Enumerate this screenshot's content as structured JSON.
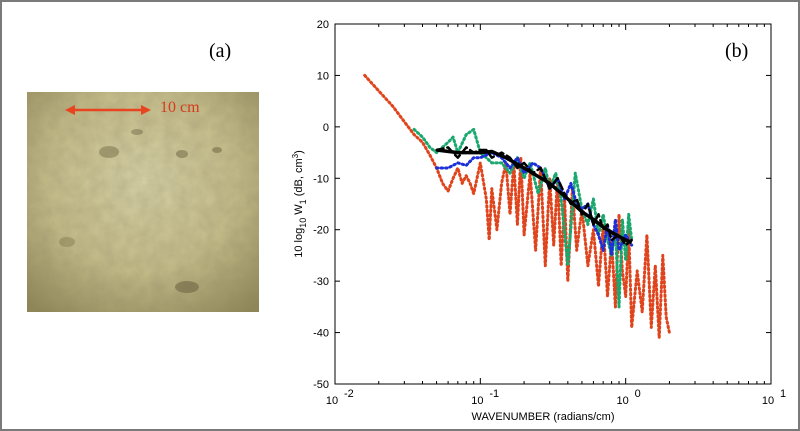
{
  "panels": {
    "a_label": "(a)",
    "b_label": "(b)"
  },
  "photo": {
    "scale_label": "10 cm",
    "scale_color": "#e8441f"
  },
  "chart_data": {
    "type": "line",
    "xscale": "log",
    "xlim": [
      0.01,
      10
    ],
    "ylim": [
      -50,
      20
    ],
    "x_ticks": [
      {
        "value": 0.01,
        "base": "10",
        "exp": "-2"
      },
      {
        "value": 0.1,
        "base": "10",
        "exp": "-1"
      },
      {
        "value": 1,
        "base": "10",
        "exp": "0"
      },
      {
        "value": 10,
        "base": "10",
        "exp": "1"
      }
    ],
    "y_ticks": [
      20,
      10,
      0,
      -10,
      -20,
      -30,
      -40,
      -50
    ],
    "xlabel": "WAVENUMBER (radians/cm)",
    "ylabel_parts": {
      "pre": "10 log",
      "sub10": "10",
      "w": " W",
      "sub1": "1",
      "post": "  (dB, cm",
      "sup": "3",
      "close": ")"
    },
    "grid": false,
    "series": [
      {
        "color": "#e0441c",
        "style": "dotted",
        "x": [
          0.016,
          0.02,
          0.025,
          0.03,
          0.035,
          0.04,
          0.045,
          0.05,
          0.055,
          0.06,
          0.065,
          0.07,
          0.075,
          0.08,
          0.085,
          0.09,
          0.1,
          0.11,
          0.115,
          0.12,
          0.13,
          0.14,
          0.15,
          0.16,
          0.17,
          0.18,
          0.19,
          0.2,
          0.22,
          0.24,
          0.26,
          0.28,
          0.3,
          0.32,
          0.34,
          0.36,
          0.38,
          0.4,
          0.43,
          0.46,
          0.5,
          0.55,
          0.6,
          0.65,
          0.7,
          0.75,
          0.8,
          0.85,
          0.9,
          0.95,
          1.0,
          1.05,
          1.1,
          1.2,
          1.3,
          1.4,
          1.5,
          1.6,
          1.7,
          1.8,
          1.9,
          2.0
        ],
        "y": [
          10,
          7,
          4,
          1,
          -1.5,
          -3,
          -5.5,
          -8,
          -11,
          -12.5,
          -10,
          -8,
          -11,
          -9.5,
          -11,
          -13,
          -7,
          -14,
          -22,
          -12,
          -20,
          -11,
          -7,
          -17,
          -7,
          -19,
          -6,
          -21,
          -9,
          -24,
          -8,
          -27,
          -10,
          -23,
          -10,
          -27,
          -14,
          -30,
          -12,
          -24,
          -16,
          -27,
          -20,
          -31,
          -19,
          -33,
          -22,
          -35,
          -17,
          -28,
          -33,
          -20,
          -39,
          -28,
          -36,
          -21,
          -39,
          -27,
          -41,
          -25,
          -37,
          -40
        ]
      },
      {
        "color": "#1aa86e",
        "style": "dotted",
        "x": [
          0.035,
          0.04,
          0.045,
          0.05,
          0.06,
          0.065,
          0.07,
          0.08,
          0.09,
          0.1,
          0.11,
          0.12,
          0.14,
          0.16,
          0.18,
          0.2,
          0.22,
          0.25,
          0.28,
          0.3,
          0.33,
          0.36,
          0.4,
          0.45,
          0.5,
          0.55,
          0.6,
          0.65,
          0.7,
          0.75,
          0.8,
          0.85,
          0.9,
          0.95,
          1.0,
          1.05,
          1.1
        ],
        "y": [
          -0.5,
          -2,
          -4,
          -5,
          -3,
          -2,
          -5,
          -1.5,
          -0.5,
          -5,
          -6,
          -7,
          -7,
          -9,
          -6,
          -10,
          -7,
          -13,
          -8,
          -12,
          -9,
          -14,
          -27,
          -9,
          -16,
          -19,
          -14,
          -21,
          -17,
          -22,
          -25,
          -20,
          -35,
          -18,
          -26,
          -17,
          -22
        ]
      },
      {
        "color": "#1c2fd8",
        "style": "dotted",
        "x": [
          0.05,
          0.06,
          0.07,
          0.08,
          0.09,
          0.1,
          0.12,
          0.14,
          0.16,
          0.18,
          0.2,
          0.23,
          0.26,
          0.3,
          0.34,
          0.38,
          0.42,
          0.46,
          0.5,
          0.55,
          0.6,
          0.65,
          0.7,
          0.75,
          0.8,
          0.85,
          0.9,
          1.0,
          1.1
        ],
        "y": [
          -8,
          -8,
          -7,
          -7.5,
          -6,
          -6,
          -5,
          -6,
          -8,
          -6,
          -9,
          -7,
          -8,
          -12,
          -10,
          -14,
          -11,
          -15,
          -16,
          -15,
          -19,
          -21,
          -24,
          -19,
          -25,
          -18,
          -24,
          -21,
          -23
        ]
      },
      {
        "color": "#000000",
        "style": "dashed",
        "x": [
          0.05,
          0.06,
          0.07,
          0.08,
          0.09,
          0.1,
          0.11,
          0.12,
          0.14,
          0.16,
          0.18,
          0.2,
          0.23,
          0.26,
          0.3,
          0.34,
          0.38,
          0.42,
          0.46,
          0.5,
          0.55,
          0.6,
          0.65,
          0.7,
          0.75,
          0.8,
          0.9,
          1.0,
          1.1
        ],
        "y": [
          -4.5,
          -4,
          -6,
          -4,
          -5,
          -4.5,
          -4.5,
          -6,
          -5,
          -6,
          -8,
          -7,
          -9,
          -8,
          -12,
          -10,
          -13,
          -15,
          -14,
          -17,
          -15,
          -19,
          -17,
          -20,
          -19,
          -22,
          -21,
          -23,
          -22
        ]
      },
      {
        "color": "#000000",
        "style": "solid",
        "x": [
          0.05,
          0.07,
          0.1,
          0.12,
          0.15,
          0.2,
          0.3,
          0.4,
          0.5,
          0.6,
          0.7,
          0.8,
          1.0,
          1.1
        ],
        "y": [
          -4.5,
          -5,
          -5,
          -4.8,
          -6,
          -8,
          -11,
          -14,
          -16.5,
          -18,
          -19.5,
          -20.5,
          -22,
          -22.5
        ]
      }
    ]
  }
}
